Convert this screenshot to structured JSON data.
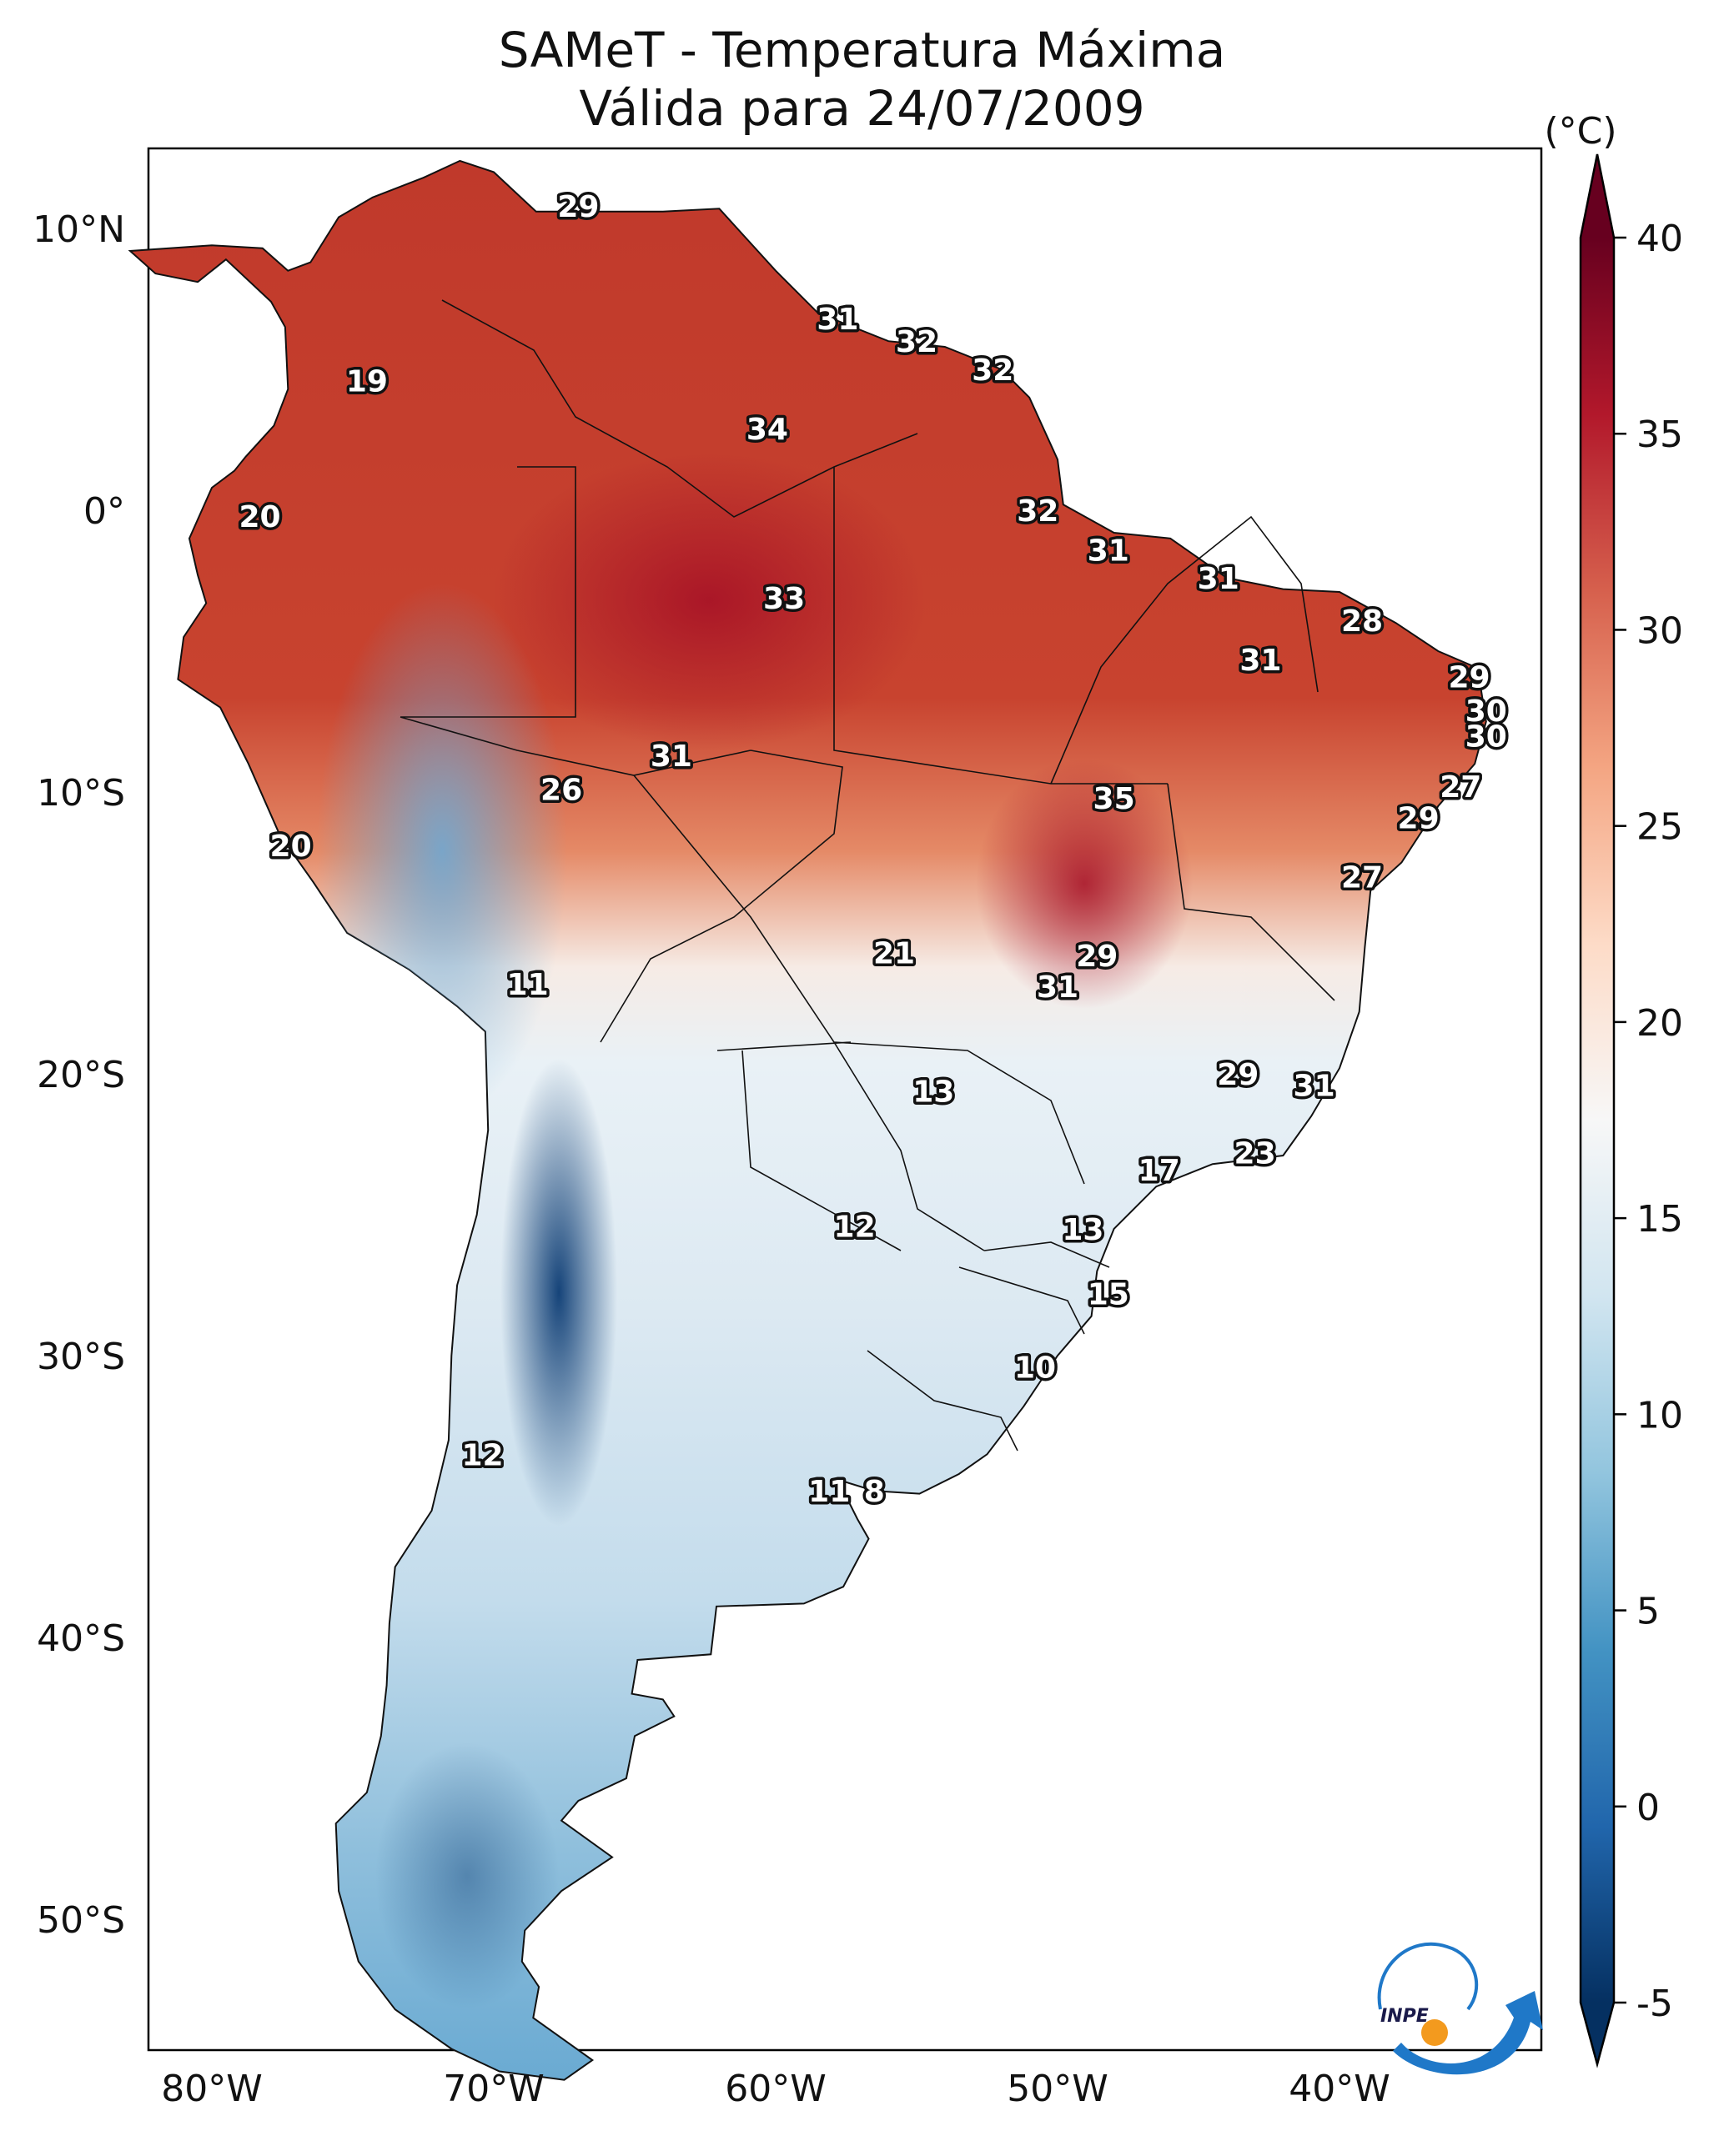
{
  "title_line1": "SAMeT - Temperatura Máxima",
  "title_line2": "Válida para 24/07/2009",
  "colorbar": {
    "unit": "(°C)",
    "ticks": [
      "40",
      "35",
      "30",
      "25",
      "20",
      "15",
      "10",
      "5",
      "0",
      "-5"
    ],
    "range": [
      -5,
      40
    ],
    "colormap": "RdBu_r"
  },
  "lat_labels": [
    "10°N",
    "0°",
    "10°S",
    "20°S",
    "30°S",
    "40°S",
    "50°S"
  ],
  "lon_labels": [
    "80°W",
    "70°W",
    "60°W",
    "50°W",
    "40°W"
  ],
  "logo_text": "INPE",
  "temperature_labels": [
    {
      "text": "29",
      "lon": -67.0,
      "lat": 10.8
    },
    {
      "text": "19",
      "lon": -74.5,
      "lat": 4.6
    },
    {
      "text": "20",
      "lon": -78.3,
      "lat": -0.2
    },
    {
      "text": "31",
      "lon": -57.8,
      "lat": 6.8
    },
    {
      "text": "32",
      "lon": -55.0,
      "lat": 6.0
    },
    {
      "text": "32",
      "lon": -52.3,
      "lat": 5.0
    },
    {
      "text": "34",
      "lon": -60.3,
      "lat": 2.9
    },
    {
      "text": "32",
      "lon": -50.7,
      "lat": 0.0
    },
    {
      "text": "31",
      "lon": -48.2,
      "lat": -1.4
    },
    {
      "text": "31",
      "lon": -44.3,
      "lat": -2.4
    },
    {
      "text": "28",
      "lon": -39.2,
      "lat": -3.9
    },
    {
      "text": "31",
      "lon": -42.8,
      "lat": -5.3
    },
    {
      "text": "33",
      "lon": -59.7,
      "lat": -3.1
    },
    {
      "text": "29",
      "lon": -35.4,
      "lat": -5.9
    },
    {
      "text": "30",
      "lon": -34.8,
      "lat": -7.1
    },
    {
      "text": "30",
      "lon": -34.8,
      "lat": -8.0
    },
    {
      "text": "27",
      "lon": -35.7,
      "lat": -9.8
    },
    {
      "text": "29",
      "lon": -37.2,
      "lat": -10.9
    },
    {
      "text": "27",
      "lon": -39.2,
      "lat": -13.0
    },
    {
      "text": "31",
      "lon": -63.7,
      "lat": -8.7
    },
    {
      "text": "26",
      "lon": -67.6,
      "lat": -9.9
    },
    {
      "text": "35",
      "lon": -48.0,
      "lat": -10.2
    },
    {
      "text": "20",
      "lon": -77.2,
      "lat": -11.9
    },
    {
      "text": "21",
      "lon": -55.8,
      "lat": -15.7
    },
    {
      "text": "29",
      "lon": -48.6,
      "lat": -15.8
    },
    {
      "text": "31",
      "lon": -50.0,
      "lat": -16.9
    },
    {
      "text": "11",
      "lon": -68.8,
      "lat": -16.8
    },
    {
      "text": "29",
      "lon": -43.6,
      "lat": -20.0
    },
    {
      "text": "31",
      "lon": -40.9,
      "lat": -20.4
    },
    {
      "text": "13",
      "lon": -54.4,
      "lat": -20.6
    },
    {
      "text": "23",
      "lon": -43.0,
      "lat": -22.8
    },
    {
      "text": "17",
      "lon": -46.4,
      "lat": -23.4
    },
    {
      "text": "12",
      "lon": -57.2,
      "lat": -25.4
    },
    {
      "text": "13",
      "lon": -49.1,
      "lat": -25.5
    },
    {
      "text": "15",
      "lon": -48.2,
      "lat": -27.8
    },
    {
      "text": "10",
      "lon": -50.8,
      "lat": -30.4
    },
    {
      "text": "12",
      "lon": -70.4,
      "lat": -33.5
    },
    {
      "text": "11",
      "lon": -58.1,
      "lat": -34.8
    },
    {
      "text": "8",
      "lon": -56.5,
      "lat": -34.8
    }
  ]
}
